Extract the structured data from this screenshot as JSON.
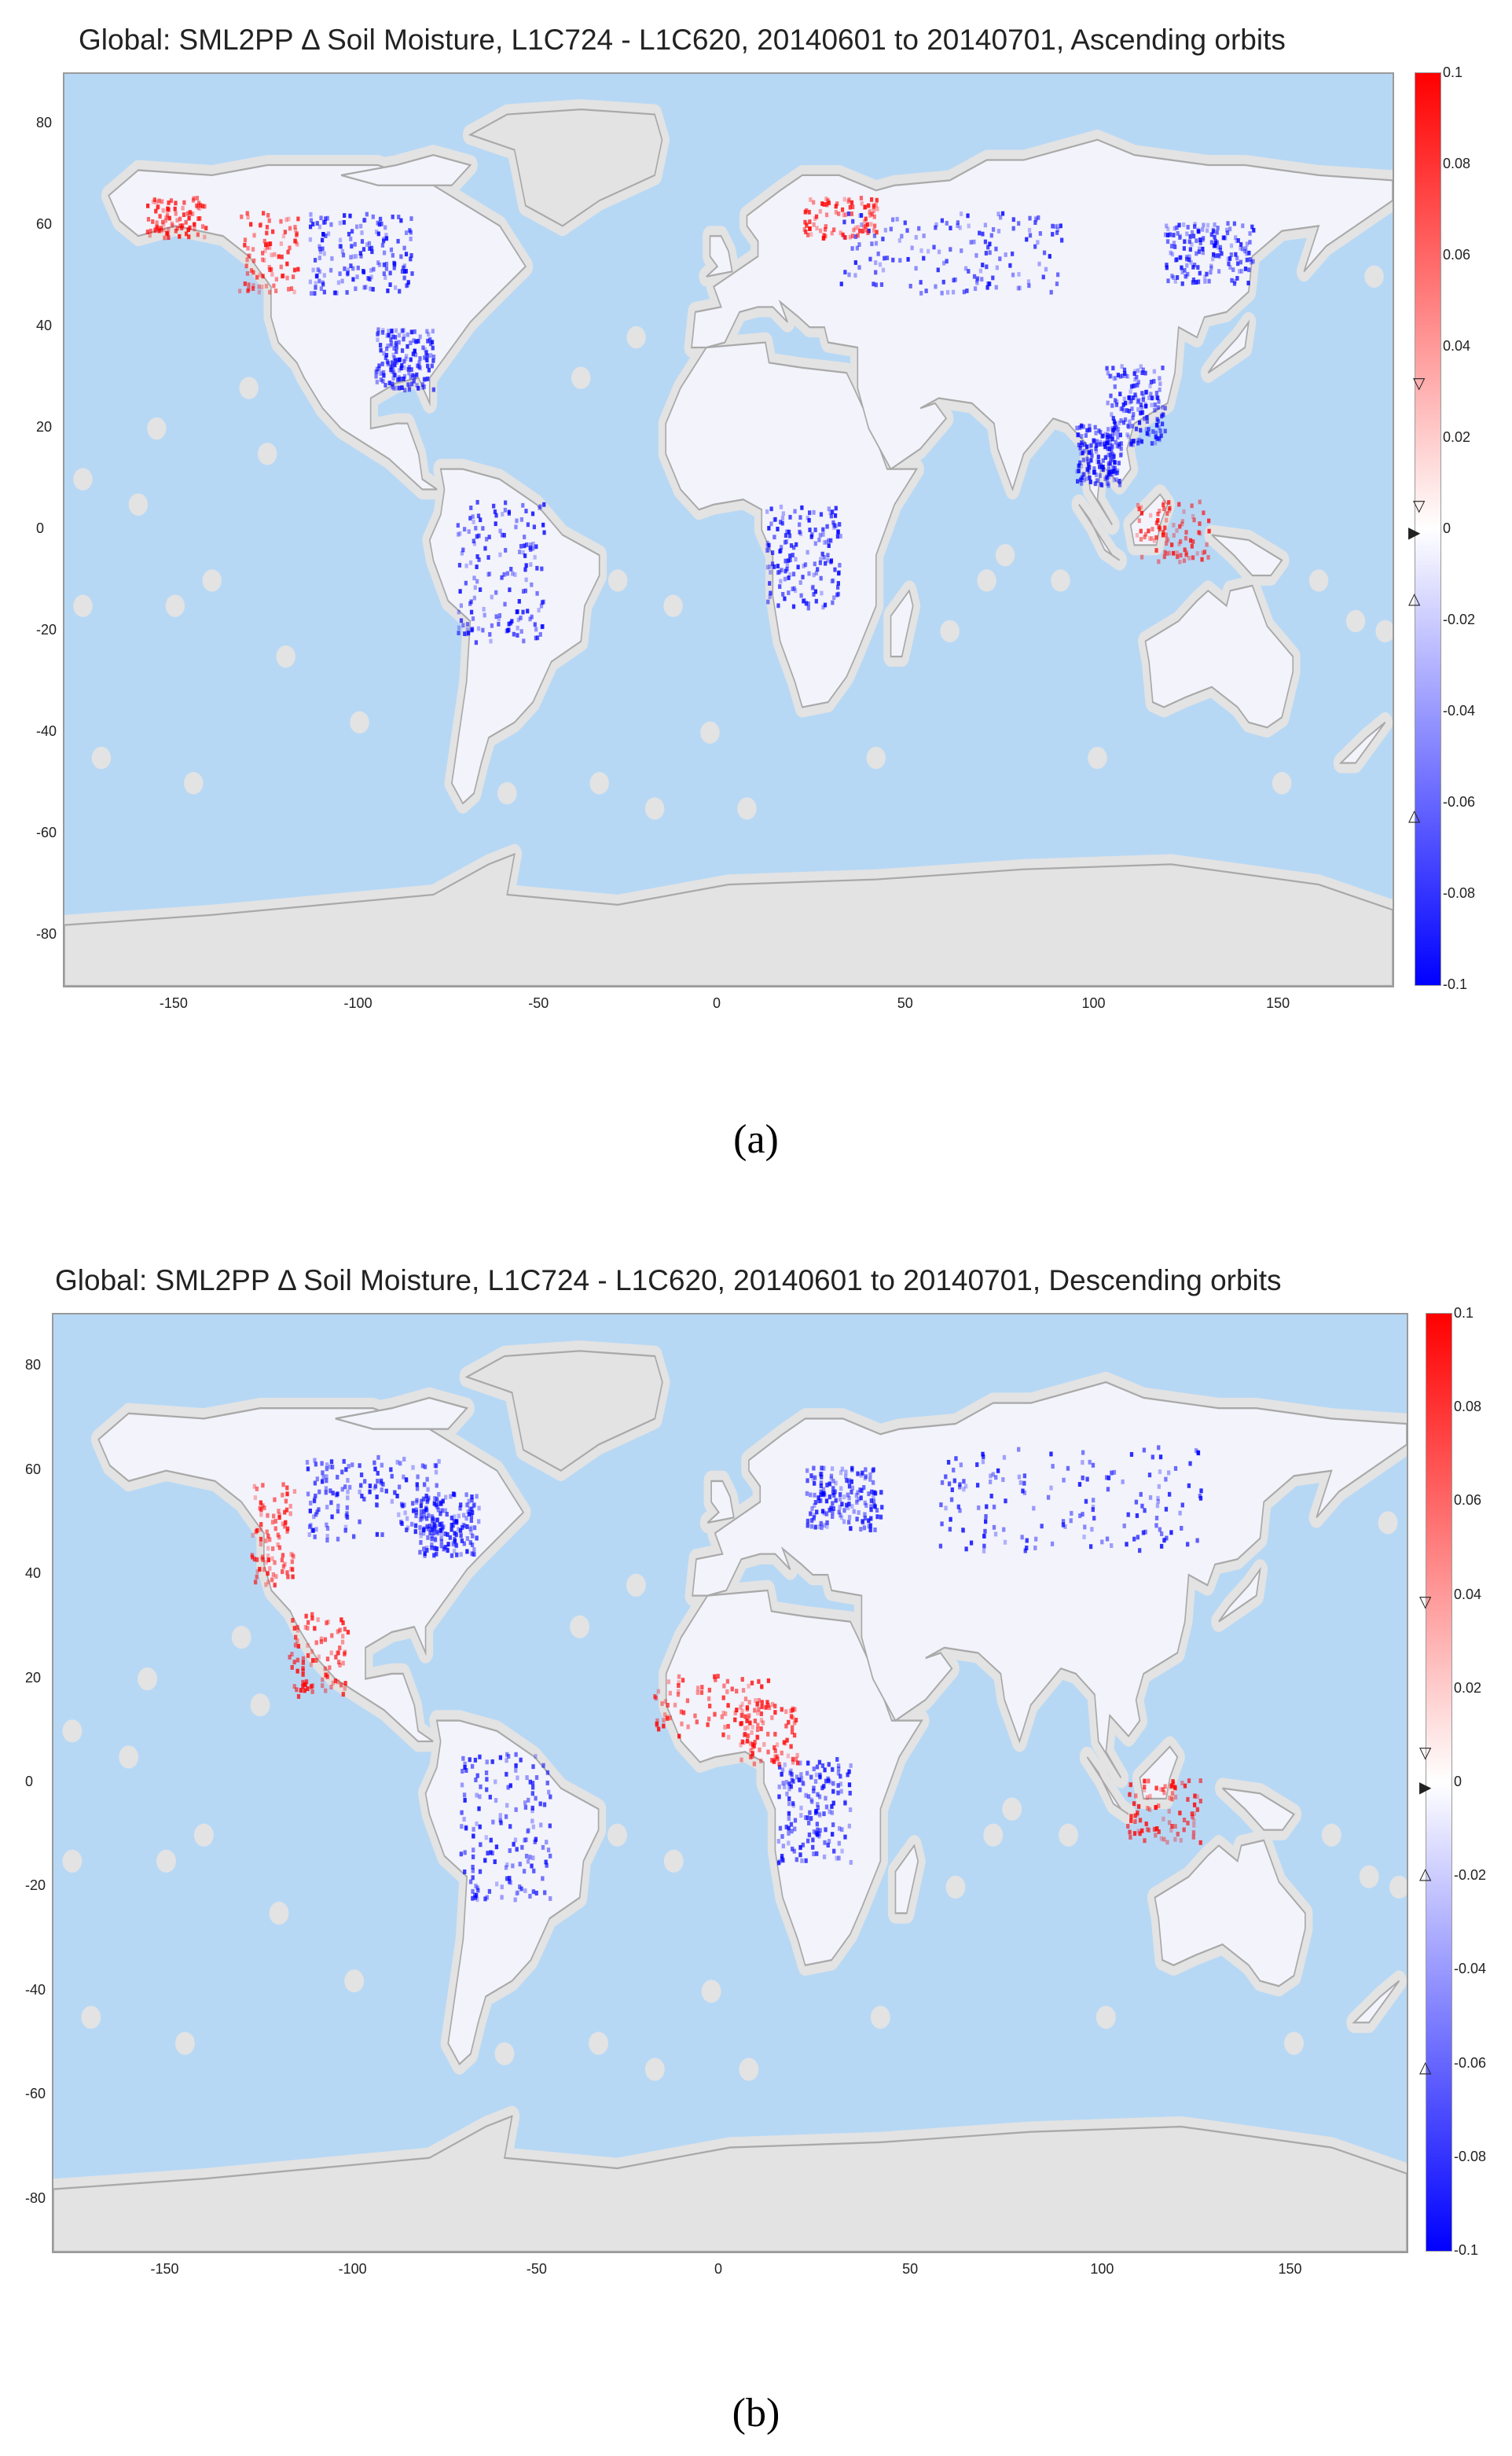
{
  "panels": [
    {
      "id": "a",
      "title": "Global: SML2PP Δ Soil Moisture, L1C724 - L1C620, 20140601 to 20140701, Ascending orbits",
      "caption": "(a)",
      "x_ticks": [
        "-150",
        "-100",
        "-50",
        "0",
        "50",
        "100",
        "150"
      ],
      "y_ticks": [
        "80",
        "60",
        "40",
        "20",
        "0",
        "-20",
        "-40",
        "-60",
        "-80"
      ],
      "colorbar_ticks": [
        "0.1",
        "0.08",
        "0.06",
        "0.04",
        "0.02",
        "0",
        "-0.02",
        "-0.04",
        "-0.06",
        "-0.08",
        "-0.1"
      ]
    },
    {
      "id": "b",
      "title": "Global: SML2PP Δ Soil Moisture, L1C724 - L1C620, 20140601 to 20140701, Descending orbits",
      "caption": "(b)",
      "x_ticks": [
        "-150",
        "-100",
        "-50",
        "0",
        "50",
        "100",
        "150"
      ],
      "y_ticks": [
        "80",
        "60",
        "40",
        "20",
        "0",
        "-20",
        "-40",
        "-60",
        "-80"
      ],
      "colorbar_ticks": [
        "0.1",
        "0.08",
        "0.06",
        "0.04",
        "0.02",
        "0",
        "-0.02",
        "-0.04",
        "-0.06",
        "-0.08",
        "-0.1"
      ]
    }
  ],
  "map": {
    "lon_range": [
      -180,
      180
    ],
    "lat_range": [
      -90,
      90
    ],
    "colorbar_range": [
      -0.1,
      0.1
    ],
    "colors": {
      "ocean": "#b7d8f5",
      "land_background": "#e3e3e3",
      "land": "#f3f3fb",
      "positive": "#ff0000",
      "negative": "#0000ff",
      "neutral": "#ffffff"
    }
  }
}
